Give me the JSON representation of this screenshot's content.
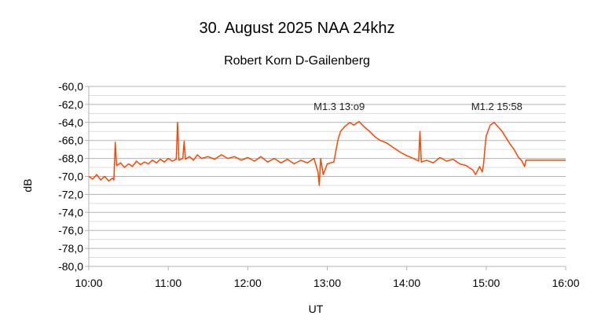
{
  "chart_data": {
    "type": "line",
    "title": "30. August 2025   NAA 24khz",
    "subtitle": "Robert Korn D-Gailenberg",
    "xlabel": "UT",
    "ylabel": "dB",
    "xlim": [
      "10:00",
      "16:00"
    ],
    "ylim": [
      -80,
      -60
    ],
    "grid": true,
    "legend": "none",
    "line_color": "#ff4500",
    "x_ticks": [
      "10:00",
      "11:00",
      "12:00",
      "13:00",
      "14:00",
      "15:00",
      "16:00"
    ],
    "y_ticks": [
      "-60,0",
      "-62,0",
      "-64,0",
      "-66,0",
      "-68,0",
      "-70,0",
      "-72,0",
      "-74,0",
      "-76,0",
      "-78,0",
      "-80,0"
    ],
    "annotations": [
      {
        "text": "M1.3  13:o9",
        "x": "13:09",
        "y": -62.2
      },
      {
        "text": "M1.2  15:58",
        "x": "15:08",
        "y": -62.2
      }
    ],
    "series": [
      {
        "points": [
          [
            "10:00",
            -70.0
          ],
          [
            "10:03",
            -70.3
          ],
          [
            "10:06",
            -69.8
          ],
          [
            "10:09",
            -70.4
          ],
          [
            "10:12",
            -70.0
          ],
          [
            "10:15",
            -70.5
          ],
          [
            "10:18",
            -70.2
          ],
          [
            "10:19",
            -70.4
          ],
          [
            "10:20",
            -66.2
          ],
          [
            "10:21",
            -68.8
          ],
          [
            "10:24",
            -68.5
          ],
          [
            "10:27",
            -69.0
          ],
          [
            "10:30",
            -68.6
          ],
          [
            "10:33",
            -68.9
          ],
          [
            "10:36",
            -68.3
          ],
          [
            "10:39",
            -68.7
          ],
          [
            "10:42",
            -68.4
          ],
          [
            "10:45",
            -68.6
          ],
          [
            "10:48",
            -68.2
          ],
          [
            "10:51",
            -68.5
          ],
          [
            "10:54",
            -68.1
          ],
          [
            "10:57",
            -68.4
          ],
          [
            "11:00",
            -68.0
          ],
          [
            "11:03",
            -68.3
          ],
          [
            "11:06",
            -68.1
          ],
          [
            "11:07",
            -64.0
          ],
          [
            "11:08",
            -68.2
          ],
          [
            "11:11",
            -68.0
          ],
          [
            "11:12",
            -66.1
          ],
          [
            "11:13",
            -68.1
          ],
          [
            "11:16",
            -67.8
          ],
          [
            "11:19",
            -68.2
          ],
          [
            "11:22",
            -67.6
          ],
          [
            "11:25",
            -68.0
          ],
          [
            "11:30",
            -67.8
          ],
          [
            "11:35",
            -68.1
          ],
          [
            "11:40",
            -67.6
          ],
          [
            "11:45",
            -68.0
          ],
          [
            "11:50",
            -67.8
          ],
          [
            "11:55",
            -68.2
          ],
          [
            "12:00",
            -67.9
          ],
          [
            "12:05",
            -68.3
          ],
          [
            "12:10",
            -67.8
          ],
          [
            "12:15",
            -68.4
          ],
          [
            "12:20",
            -68.0
          ],
          [
            "12:25",
            -68.5
          ],
          [
            "12:30",
            -68.1
          ],
          [
            "12:35",
            -68.6
          ],
          [
            "12:40",
            -68.2
          ],
          [
            "12:45",
            -68.5
          ],
          [
            "12:50",
            -68.0
          ],
          [
            "12:53",
            -69.5
          ],
          [
            "12:54",
            -71.0
          ],
          [
            "12:55",
            -68.0
          ],
          [
            "12:57",
            -69.8
          ],
          [
            "13:00",
            -68.6
          ],
          [
            "13:05",
            -68.4
          ],
          [
            "13:08",
            -66.0
          ],
          [
            "13:10",
            -65.0
          ],
          [
            "13:13",
            -64.5
          ],
          [
            "13:17",
            -64.0
          ],
          [
            "13:20",
            -64.3
          ],
          [
            "13:24",
            -63.9
          ],
          [
            "13:28",
            -64.5
          ],
          [
            "13:32",
            -65.0
          ],
          [
            "13:36",
            -65.6
          ],
          [
            "13:40",
            -66.0
          ],
          [
            "13:45",
            -66.3
          ],
          [
            "13:50",
            -66.8
          ],
          [
            "13:55",
            -67.3
          ],
          [
            "14:00",
            -67.7
          ],
          [
            "14:05",
            -68.0
          ],
          [
            "14:09",
            -68.3
          ],
          [
            "14:10",
            -65.0
          ],
          [
            "14:11",
            -68.4
          ],
          [
            "14:15",
            -68.2
          ],
          [
            "14:20",
            -68.5
          ],
          [
            "14:25",
            -67.9
          ],
          [
            "14:30",
            -68.3
          ],
          [
            "14:35",
            -68.1
          ],
          [
            "14:40",
            -68.6
          ],
          [
            "14:45",
            -68.8
          ],
          [
            "14:50",
            -69.3
          ],
          [
            "14:52",
            -69.8
          ],
          [
            "14:55",
            -68.9
          ],
          [
            "14:57",
            -69.5
          ],
          [
            "14:58",
            -68.6
          ],
          [
            "14:59",
            -67.0
          ],
          [
            "15:00",
            -65.5
          ],
          [
            "15:03",
            -64.3
          ],
          [
            "15:06",
            -64.0
          ],
          [
            "15:09",
            -64.5
          ],
          [
            "15:12",
            -65.0
          ],
          [
            "15:15",
            -65.7
          ],
          [
            "15:18",
            -66.4
          ],
          [
            "15:21",
            -67.0
          ],
          [
            "15:24",
            -67.8
          ],
          [
            "15:27",
            -68.3
          ],
          [
            "15:29",
            -68.9
          ],
          [
            "15:30",
            -68.2
          ],
          [
            "16:00",
            -68.2
          ]
        ]
      }
    ]
  }
}
